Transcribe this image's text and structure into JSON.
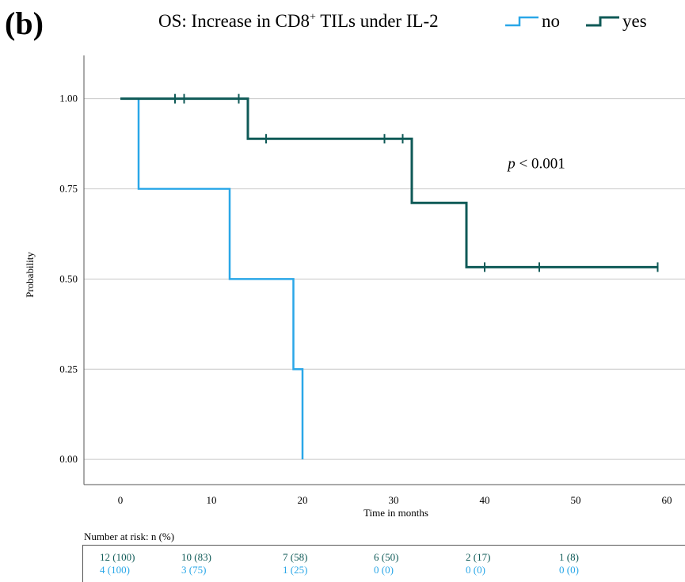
{
  "panel_label": "(b)",
  "chart_title": {
    "prefix": "OS: Increase in CD8",
    "superscript": "+",
    "suffix": " TILs under IL-2"
  },
  "colors": {
    "no": "#2aa7e8",
    "yes": "#0f5a57",
    "grid": "#c8c8c8",
    "axis": "#555555"
  },
  "chart_data": {
    "type": "line",
    "subtype": "kaplan-meier",
    "xlabel": "Time in months",
    "ylabel": "Probability",
    "xlim": [
      -4,
      62
    ],
    "ylim": [
      -0.07,
      1.12
    ],
    "x_ticks": [
      0,
      10,
      20,
      30,
      40,
      50,
      60
    ],
    "y_ticks": [
      0.0,
      0.25,
      0.5,
      0.75,
      1.0
    ],
    "y_tick_labels": [
      "0.00",
      "0.25",
      "0.50",
      "0.75",
      "1.00"
    ],
    "grid": "horizontal",
    "legend_position": "top-right",
    "annotation": {
      "text_italic": "p",
      "text_rest": " < 0.001",
      "x": 45,
      "y": 0.82
    },
    "series": [
      {
        "name": "no",
        "steps": [
          [
            0,
            1.0
          ],
          [
            2,
            0.75
          ],
          [
            12,
            0.5
          ],
          [
            19,
            0.25
          ],
          [
            20,
            0.0
          ]
        ],
        "end_x": 20,
        "censored": []
      },
      {
        "name": "yes",
        "steps": [
          [
            0,
            1.0
          ],
          [
            14,
            0.889
          ],
          [
            32,
            0.711
          ],
          [
            38,
            0.533
          ]
        ],
        "end_x": 59,
        "censored": [
          [
            6,
            1.0
          ],
          [
            7,
            1.0
          ],
          [
            13,
            1.0
          ],
          [
            16,
            0.889
          ],
          [
            29,
            0.889
          ],
          [
            31,
            0.889
          ],
          [
            40,
            0.533
          ],
          [
            46,
            0.533
          ],
          [
            59,
            0.533
          ]
        ]
      }
    ]
  },
  "risk_table": {
    "title": "Number at risk: n (%)",
    "rows": [
      {
        "series": "yes",
        "values": [
          "12 (100)",
          "10 (83)",
          "7 (58)",
          "6 (50)",
          "2 (17)",
          "1 (8)"
        ]
      },
      {
        "series": "no",
        "values": [
          "4 (100)",
          "3 (75)",
          "1 (25)",
          "0 (0)",
          "0 (0)",
          "0 (0)"
        ]
      }
    ]
  }
}
